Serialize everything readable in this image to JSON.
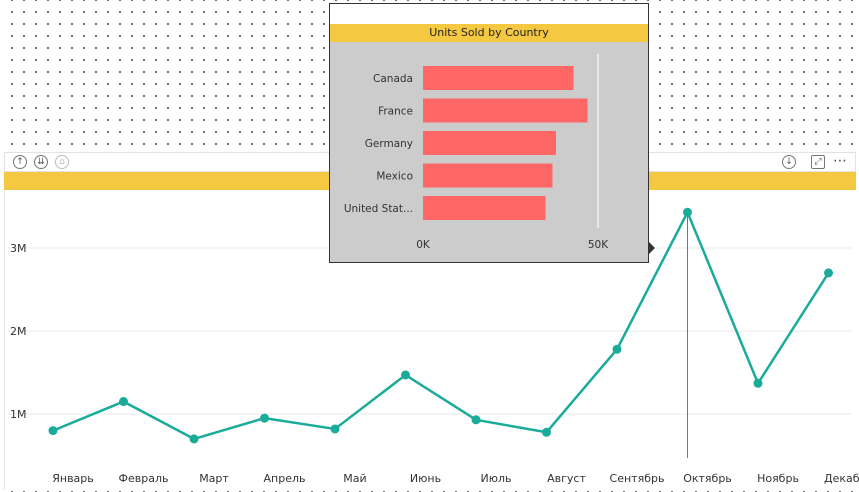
{
  "visual_header": {
    "icons": [
      "drill-up-icon",
      "drill-down-all-icon",
      "expand-hierarchy-icon"
    ],
    "right_icons": [
      "drill-down-icon",
      "focus-mode-icon",
      "more-options-icon"
    ],
    "more_label": "⋯"
  },
  "colors": {
    "accent": "#f5c842",
    "line": "#1aab9b",
    "bar": "#ff6666",
    "tooltip_bg": "#cccccc"
  },
  "chart_data": [
    {
      "type": "line",
      "categories": [
        "Январь",
        "Февраль",
        "Март",
        "Апрель",
        "Май",
        "Июнь",
        "Июль",
        "Август",
        "Сентябрь",
        "Октябрь",
        "Ноябрь",
        "Декабрь"
      ],
      "series": [
        {
          "values": [
            0.8,
            1.15,
            0.7,
            0.95,
            0.82,
            1.47,
            0.93,
            0.78,
            1.78,
            3.43,
            1.37,
            2.7
          ]
        }
      ],
      "yticks": [
        "1M",
        "2M",
        "3M"
      ],
      "ylim": [
        0,
        3.6
      ],
      "grid": true,
      "highlight": "Октябрь"
    },
    {
      "type": "bar",
      "orientation": "horizontal",
      "title": "Units Sold by Country",
      "categories": [
        "Canada",
        "France",
        "Germany",
        "Mexico",
        "United Stat..."
      ],
      "values": [
        43000,
        47000,
        38000,
        37000,
        35000
      ],
      "xticks": [
        "0K",
        "50K"
      ],
      "xlim": [
        0,
        50000
      ]
    }
  ]
}
